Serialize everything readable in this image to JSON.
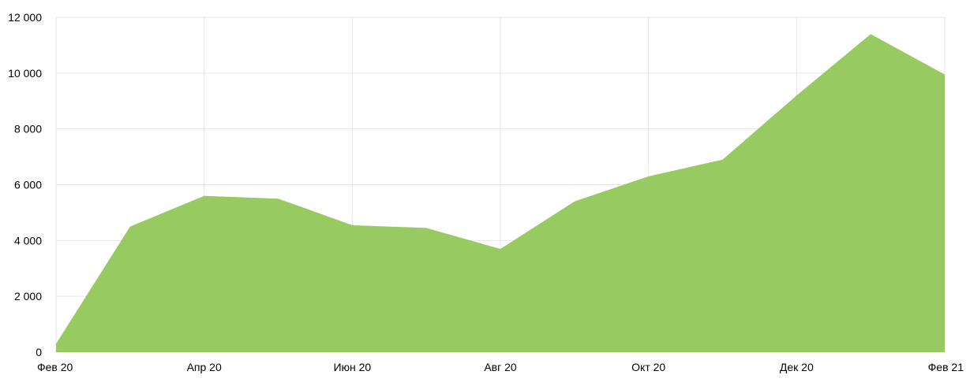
{
  "chart_data": {
    "type": "area",
    "title": "",
    "xlabel": "",
    "ylabel": "",
    "x": [
      "2020-02",
      "2020-03",
      "2020-04",
      "2020-05",
      "2020-06",
      "2020-07",
      "2020-08",
      "2020-09",
      "2020-10",
      "2020-11",
      "2020-12",
      "2021-01",
      "2021-02"
    ],
    "series": [
      {
        "values": [
          300,
          4500,
          5600,
          5500,
          4550,
          4450,
          3700,
          5400,
          6300,
          6900,
          9200,
          11400,
          9950
        ],
        "color": "#8dc451"
      }
    ],
    "ylim": [
      0,
      12000
    ],
    "y_ticks": [
      0,
      2000,
      4000,
      6000,
      8000,
      10000,
      12000
    ],
    "y_tick_labels": [
      "0",
      "2 000",
      "4 000",
      "6 000",
      "8 000",
      "10 000",
      "12 000"
    ],
    "x_ticks": [
      "2020-02",
      "2020-04",
      "2020-06",
      "2020-08",
      "2020-10",
      "2020-12",
      "2021-02"
    ],
    "x_tick_labels": [
      "Фев 20",
      "Апр 20",
      "Июн 20",
      "Авг 20",
      "Окт 20",
      "Дек 20",
      "Фев 21"
    ],
    "grid": true,
    "legend": "none"
  }
}
